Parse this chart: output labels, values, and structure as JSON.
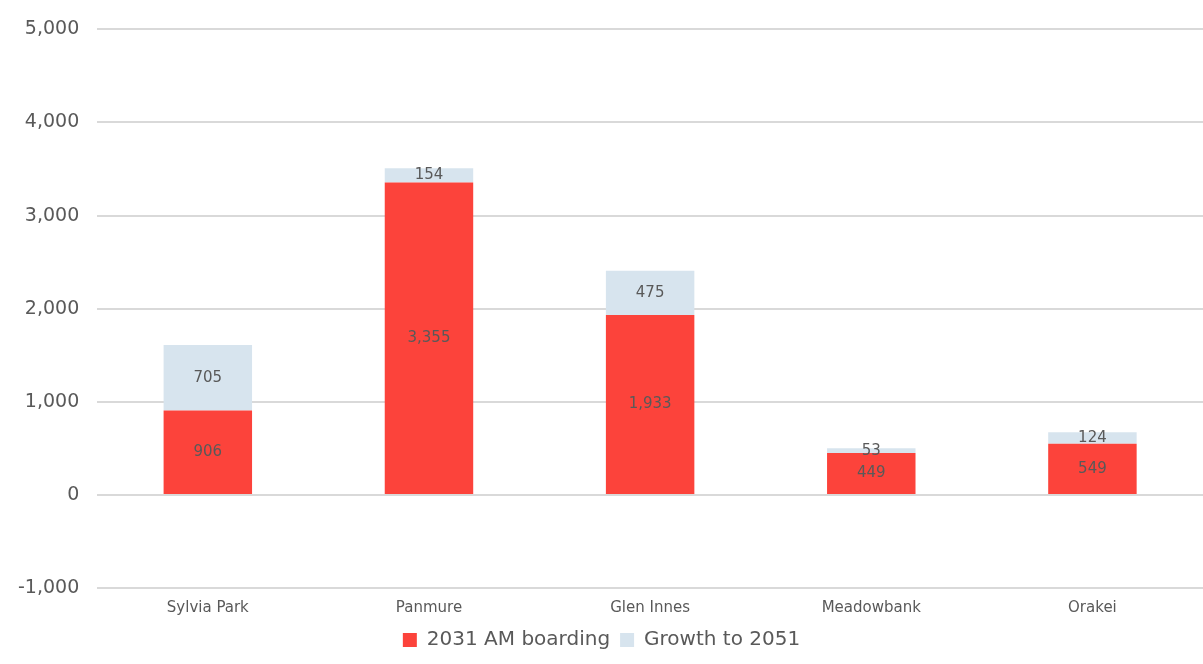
{
  "chart_data": {
    "type": "bar",
    "stacked": true,
    "categories": [
      "Sylvia Park",
      "Panmure",
      "Glen Innes",
      "Meadowbank",
      "Orakei"
    ],
    "series": [
      {
        "name": "2031 AM boarding",
        "color": "#fc433b",
        "values": [
          906,
          3355,
          1933,
          449,
          549
        ],
        "value_labels": [
          "906",
          "3,355",
          "1,933",
          "449",
          "549"
        ]
      },
      {
        "name": "Growth to 2051",
        "color": "#d7e4ee",
        "values": [
          705,
          154,
          475,
          53,
          124
        ],
        "value_labels": [
          "705",
          "154",
          "475",
          "53",
          "124"
        ]
      }
    ],
    "ylim": [
      -1000,
      5000
    ],
    "yticks": [
      {
        "value": -1000,
        "label": "-1,000"
      },
      0,
      {
        "value": 1000,
        "label": "1,000"
      },
      {
        "value": 2000,
        "label": "2,000"
      },
      {
        "value": 3000,
        "label": "3,000"
      },
      {
        "value": 4000,
        "label": "4,000"
      },
      {
        "value": 5000,
        "label": "5,000"
      }
    ],
    "grid": "y",
    "legend": "bottom"
  }
}
